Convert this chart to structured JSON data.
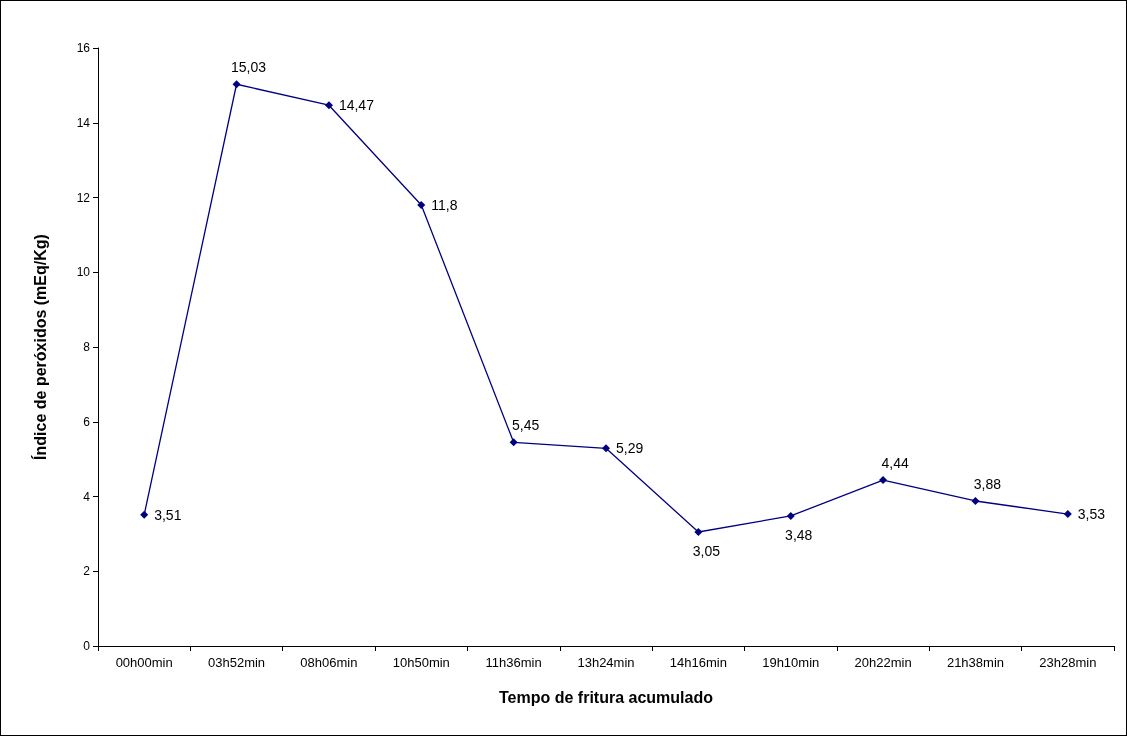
{
  "chart_data": {
    "type": "line",
    "xlabel": "Tempo de fritura acumulado",
    "ylabel": "Índice de peróxidos (mEq/Kg)",
    "categories": [
      "00h00min",
      "03h52min",
      "08h06min",
      "10h50min",
      "11h36min",
      "13h24min",
      "14h16min",
      "19h10min",
      "20h22min",
      "21h38min",
      "23h28min"
    ],
    "series": [
      {
        "color": "#000080",
        "values": [
          3.51,
          15.03,
          14.47,
          11.8,
          5.45,
          5.29,
          3.05,
          3.48,
          4.44,
          3.88,
          3.53
        ],
        "value_labels": [
          "3,51",
          "15,03",
          "14,47",
          "11,8",
          "5,45",
          "5,29",
          "3,05",
          "3,48",
          "4,44",
          "3,88",
          "3,53"
        ]
      }
    ],
    "ylim": [
      0,
      16
    ],
    "yticks": [
      0,
      2,
      4,
      6,
      8,
      10,
      12,
      14,
      16
    ],
    "grid": false,
    "marker": "diamond",
    "line_style": "solid"
  }
}
